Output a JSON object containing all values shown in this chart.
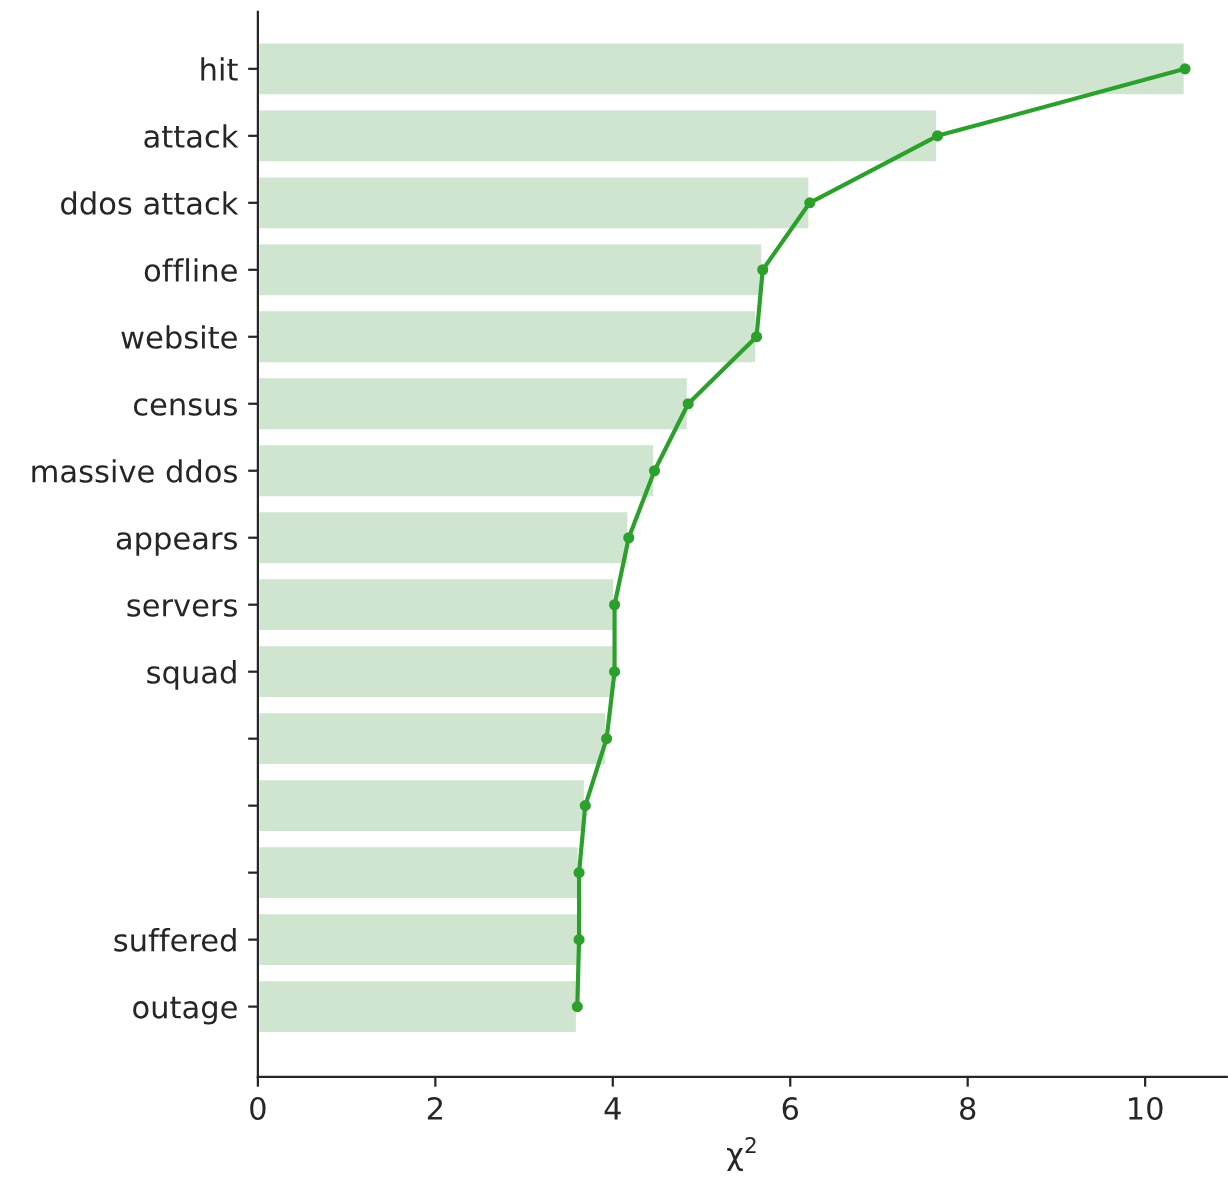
{
  "chart_data": {
    "type": "bar",
    "orientation": "horizontal",
    "xlabel": "χ$^{2}$",
    "categories": [
      "hit",
      "attack",
      "ddos attack",
      "offline",
      "website",
      "census",
      "massive ddos",
      "appears",
      "servers",
      "squad",
      null,
      null,
      null,
      "suffered",
      "outage"
    ],
    "series": [
      {
        "type": "bar",
        "color": "#cfe5cf",
        "values": [
          10.45,
          7.66,
          6.22,
          5.69,
          5.62,
          4.85,
          4.47,
          4.18,
          4.02,
          4.02,
          3.93,
          3.69,
          3.62,
          3.62,
          3.6
        ]
      },
      {
        "type": "line",
        "color": "#2ca02c",
        "marker": "circle",
        "values": [
          10.45,
          7.66,
          6.22,
          5.69,
          5.62,
          4.85,
          4.47,
          4.18,
          4.02,
          4.02,
          3.93,
          3.69,
          3.62,
          3.62,
          3.6
        ]
      }
    ],
    "xlim": [
      0,
      10.92
    ],
    "xticks": [
      0,
      2,
      4,
      6,
      8,
      10
    ],
    "grid": false,
    "legend": false
  }
}
